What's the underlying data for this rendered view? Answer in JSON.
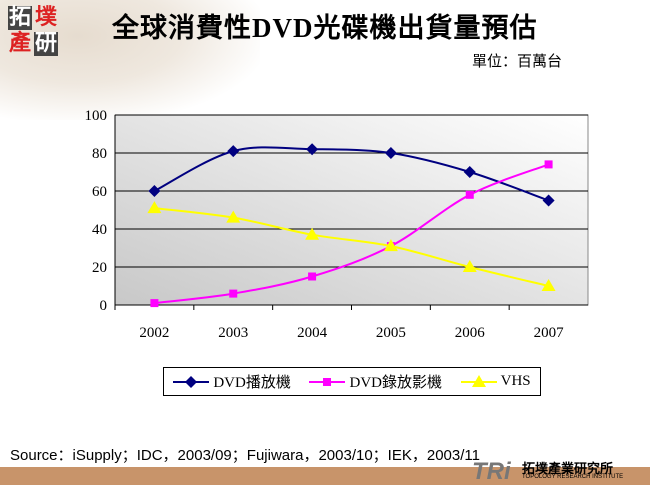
{
  "header": {
    "title": "全球消費性DVD光碟機出貨量預估",
    "unit": "單位：百萬台",
    "logo_text": "拓墣產研"
  },
  "chart_data": {
    "type": "line",
    "title": "全球消費性DVD光碟機出貨量預估",
    "categories": [
      "2002",
      "2003",
      "2004",
      "2005",
      "2006",
      "2007"
    ],
    "ylim": [
      0,
      100
    ],
    "yticks": [
      0,
      20,
      40,
      60,
      80,
      100
    ],
    "grid": true,
    "legend": "bottom",
    "smooth": true,
    "series": [
      {
        "name": "DVD播放機",
        "values": [
          60,
          81,
          82,
          80,
          70,
          55
        ],
        "color": "#000080",
        "marker": "diamond"
      },
      {
        "name": "DVD錄放影機",
        "values": [
          1,
          6,
          15,
          31,
          58,
          74
        ],
        "color": "#ff00ff",
        "marker": "square"
      },
      {
        "name": "VHS",
        "values": [
          51,
          46,
          37,
          31,
          20,
          10
        ],
        "color": "#ffff00",
        "marker": "triangle"
      }
    ]
  },
  "footer": {
    "source": "Source：iSupply；IDC，2003/09；Fujiwara，2003/10；IEK，2003/11",
    "brand": "TRi",
    "brand_cn": "拓墣產業研究所",
    "brand_en": "TOPOLOGY RESEARCH INSTITUTE"
  }
}
